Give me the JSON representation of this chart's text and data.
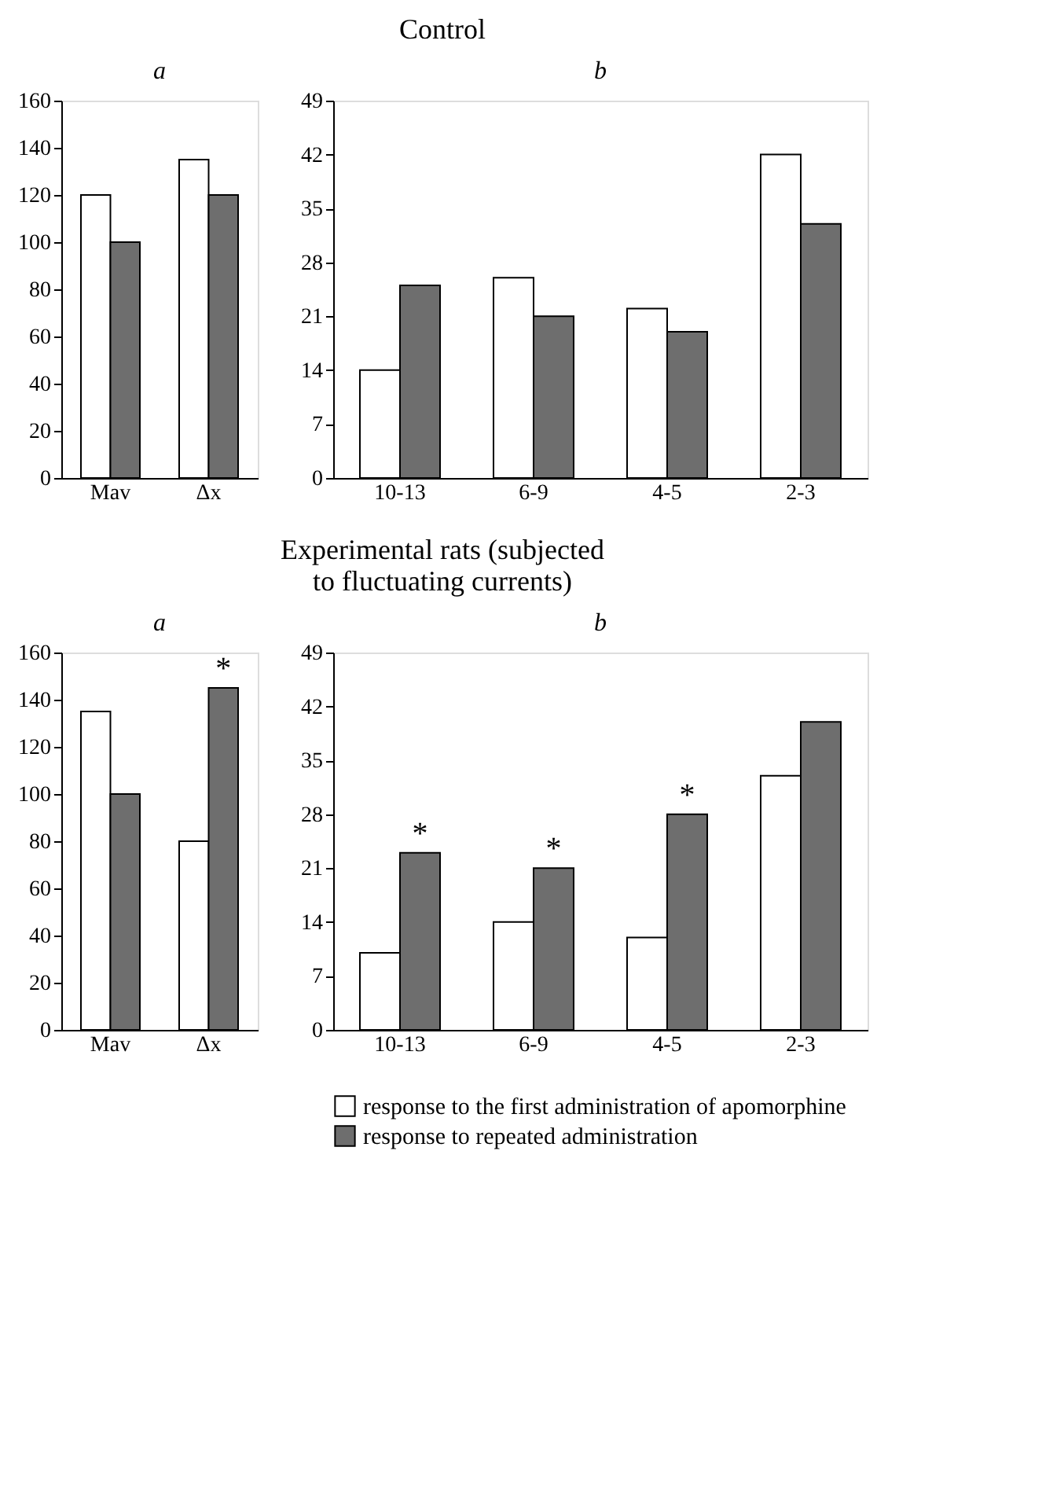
{
  "chart_data": [
    {
      "type": "bar",
      "title": "a",
      "annotations": [
        "Control"
      ],
      "categories": [
        "Mav",
        "Δx"
      ],
      "ylim": [
        0,
        160
      ],
      "yticks": [
        0,
        20,
        40,
        60,
        80,
        100,
        120,
        140,
        160
      ],
      "grid": false,
      "series": [
        {
          "color": "#ffffff",
          "values": [
            120,
            135
          ]
        },
        {
          "color": "#6e6e6e",
          "values": [
            100,
            120
          ]
        }
      ]
    },
    {
      "type": "bar",
      "title": "b",
      "categories": [
        "10-13",
        "6-9",
        "4-5",
        "2-3"
      ],
      "ylim": [
        0,
        49
      ],
      "yticks": [
        0,
        7,
        14,
        21,
        28,
        35,
        42,
        49
      ],
      "grid": false,
      "series": [
        {
          "color": "#ffffff",
          "values": [
            14,
            26,
            22,
            42
          ]
        },
        {
          "color": "#6e6e6e",
          "values": [
            25,
            21,
            19,
            33
          ]
        }
      ]
    },
    {
      "type": "bar",
      "title": "a",
      "annotations": [
        "Experimental rats (subjected to fluctuating currents)",
        {
          "text": "*",
          "x": "Δx",
          "y": 145
        }
      ],
      "categories": [
        "Mav",
        "Δx"
      ],
      "ylim": [
        0,
        160
      ],
      "yticks": [
        0,
        20,
        40,
        60,
        80,
        100,
        120,
        140,
        160
      ],
      "grid": false,
      "series": [
        {
          "color": "#ffffff",
          "values": [
            135,
            80
          ]
        },
        {
          "color": "#6e6e6e",
          "values": [
            100,
            145
          ]
        }
      ]
    },
    {
      "type": "bar",
      "title": "b",
      "annotations": [
        {
          "text": "*",
          "x": "10-13",
          "y": 23
        },
        {
          "text": "*",
          "x": "6-9",
          "y": 21
        },
        {
          "text": "*",
          "x": "4-5",
          "y": 28
        }
      ],
      "categories": [
        "10-13",
        "6-9",
        "4-5",
        "2-3"
      ],
      "ylim": [
        0,
        49
      ],
      "yticks": [
        0,
        7,
        14,
        21,
        28,
        35,
        42,
        49
      ],
      "grid": false,
      "legend": "bottom",
      "series": [
        {
          "name": "response to the first administration of apomorphine",
          "color": "#ffffff",
          "values": [
            10,
            14,
            12,
            33
          ]
        },
        {
          "name": "response to repeated administration",
          "color": "#6e6e6e",
          "values": [
            23,
            21,
            28,
            40
          ]
        }
      ]
    }
  ]
}
